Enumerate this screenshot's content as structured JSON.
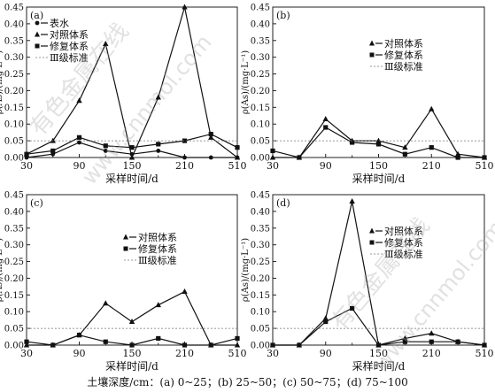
{
  "caption": "土壤深度/cm：(a) 0~25；(b) 25~50；(c) 50~75；(d) 75~100",
  "watermarks": [
    "有色金属在线",
    "www.cnnmol.com"
  ],
  "chart_data": [
    {
      "type": "line",
      "panel": "(a)",
      "xlabel": "采样时间/d",
      "ylabel": "ρ(As)/(mg·L⁻¹)",
      "xlim": [
        30,
        510
      ],
      "ylim": [
        0,
        0.45
      ],
      "yticks": [
        0.0,
        0.05,
        0.1,
        0.15,
        0.2,
        0.25,
        0.3,
        0.35,
        0.4,
        0.45
      ],
      "xticks": [
        "30",
        "90",
        "150",
        "210",
        "510"
      ],
      "standard": 0.05,
      "legend_position": "top-left",
      "x": [
        30,
        60,
        90,
        120,
        150,
        180,
        210,
        240,
        270
      ],
      "series": [
        {
          "name": "表水",
          "marker": "dot",
          "values": [
            0.0,
            0.01,
            0.045,
            0.02,
            0.01,
            0.02,
            0.0,
            0.0,
            0.0
          ]
        },
        {
          "name": "对照体系",
          "marker": "triangle",
          "values": [
            0.01,
            0.05,
            0.17,
            0.34,
            0.0,
            0.18,
            0.45,
            0.06,
            0.0
          ]
        },
        {
          "name": "修复体系",
          "marker": "square",
          "values": [
            0.01,
            0.02,
            0.06,
            0.035,
            0.03,
            0.04,
            0.05,
            0.07,
            0.03
          ]
        },
        {
          "name": "Ⅲ级标准",
          "marker": "none",
          "dashed": true,
          "values": [
            0.05,
            0.05,
            0.05,
            0.05,
            0.05,
            0.05,
            0.05,
            0.05,
            0.05
          ]
        }
      ]
    },
    {
      "type": "line",
      "panel": "(b)",
      "xlabel": "采样时间/d",
      "ylabel": "ρ(As)/(mg·L⁻¹)",
      "xlim": [
        30,
        510
      ],
      "ylim": [
        0,
        0.45
      ],
      "yticks": [
        0.0,
        0.05,
        0.1,
        0.15,
        0.2,
        0.25,
        0.3,
        0.35,
        0.4,
        0.45
      ],
      "xticks": [
        "30",
        "90",
        "150",
        "210",
        "510"
      ],
      "standard": 0.05,
      "legend_position": "top-right",
      "x": [
        30,
        60,
        90,
        120,
        150,
        180,
        210,
        240,
        270
      ],
      "series": [
        {
          "name": "对照体系",
          "marker": "triangle",
          "values": [
            0.0,
            0.0,
            0.115,
            0.05,
            0.05,
            0.03,
            0.145,
            0.01,
            0.0
          ]
        },
        {
          "name": "修复体系",
          "marker": "square",
          "values": [
            0.02,
            0.0,
            0.09,
            0.045,
            0.04,
            0.01,
            0.03,
            0.0,
            0.0
          ]
        },
        {
          "name": "Ⅲ级标准",
          "marker": "none",
          "dashed": true,
          "values": [
            0.05,
            0.05,
            0.05,
            0.05,
            0.05,
            0.05,
            0.05,
            0.05,
            0.05
          ]
        }
      ]
    },
    {
      "type": "line",
      "panel": "(c)",
      "xlabel": "采样时间/d",
      "ylabel": "ρ(As)/(mg·L⁻¹)",
      "xlim": [
        30,
        510
      ],
      "ylim": [
        0,
        0.45
      ],
      "yticks": [
        0.0,
        0.05,
        0.1,
        0.15,
        0.2,
        0.25,
        0.3,
        0.35,
        0.4,
        0.45
      ],
      "xticks": [
        "30",
        "90",
        "150",
        "210",
        "510"
      ],
      "standard": 0.05,
      "legend_position": "top-center",
      "x": [
        30,
        60,
        90,
        120,
        150,
        180,
        210,
        240,
        270
      ],
      "series": [
        {
          "name": "对照体系",
          "marker": "triangle",
          "values": [
            0.0,
            0.0,
            0.03,
            0.125,
            0.07,
            0.12,
            0.16,
            0.0,
            0.0
          ]
        },
        {
          "name": "修复体系",
          "marker": "square",
          "values": [
            0.01,
            0.0,
            0.03,
            0.01,
            0.0,
            0.02,
            0.0,
            0.0,
            0.02
          ]
        },
        {
          "name": "Ⅲ级标准",
          "marker": "none",
          "dashed": true,
          "values": [
            0.05,
            0.05,
            0.05,
            0.05,
            0.05,
            0.05,
            0.05,
            0.05,
            0.05
          ]
        }
      ]
    },
    {
      "type": "line",
      "panel": "(d)",
      "xlabel": "采样时间/d",
      "ylabel": "ρ(As)/(mg·L⁻¹)",
      "xlim": [
        30,
        510
      ],
      "ylim": [
        0,
        0.45
      ],
      "yticks": [
        0.0,
        0.05,
        0.1,
        0.15,
        0.2,
        0.25,
        0.3,
        0.35,
        0.4,
        0.45
      ],
      "xticks": [
        "30",
        "90",
        "150",
        "210",
        "510"
      ],
      "standard": 0.05,
      "legend_position": "top-right",
      "x": [
        30,
        60,
        90,
        120,
        150,
        180,
        210,
        240,
        270
      ],
      "series": [
        {
          "name": "对照体系",
          "marker": "triangle",
          "values": [
            0.0,
            0.0,
            0.08,
            0.43,
            0.0,
            0.02,
            0.035,
            0.01,
            0.0
          ]
        },
        {
          "name": "修复体系",
          "marker": "square",
          "values": [
            0.0,
            0.0,
            0.07,
            0.11,
            0.0,
            0.01,
            0.01,
            0.01,
            0.0
          ]
        },
        {
          "name": "Ⅲ级标准",
          "marker": "none",
          "dashed": true,
          "values": [
            0.05,
            0.05,
            0.05,
            0.05,
            0.05,
            0.05,
            0.05,
            0.05,
            0.05
          ]
        }
      ]
    }
  ]
}
